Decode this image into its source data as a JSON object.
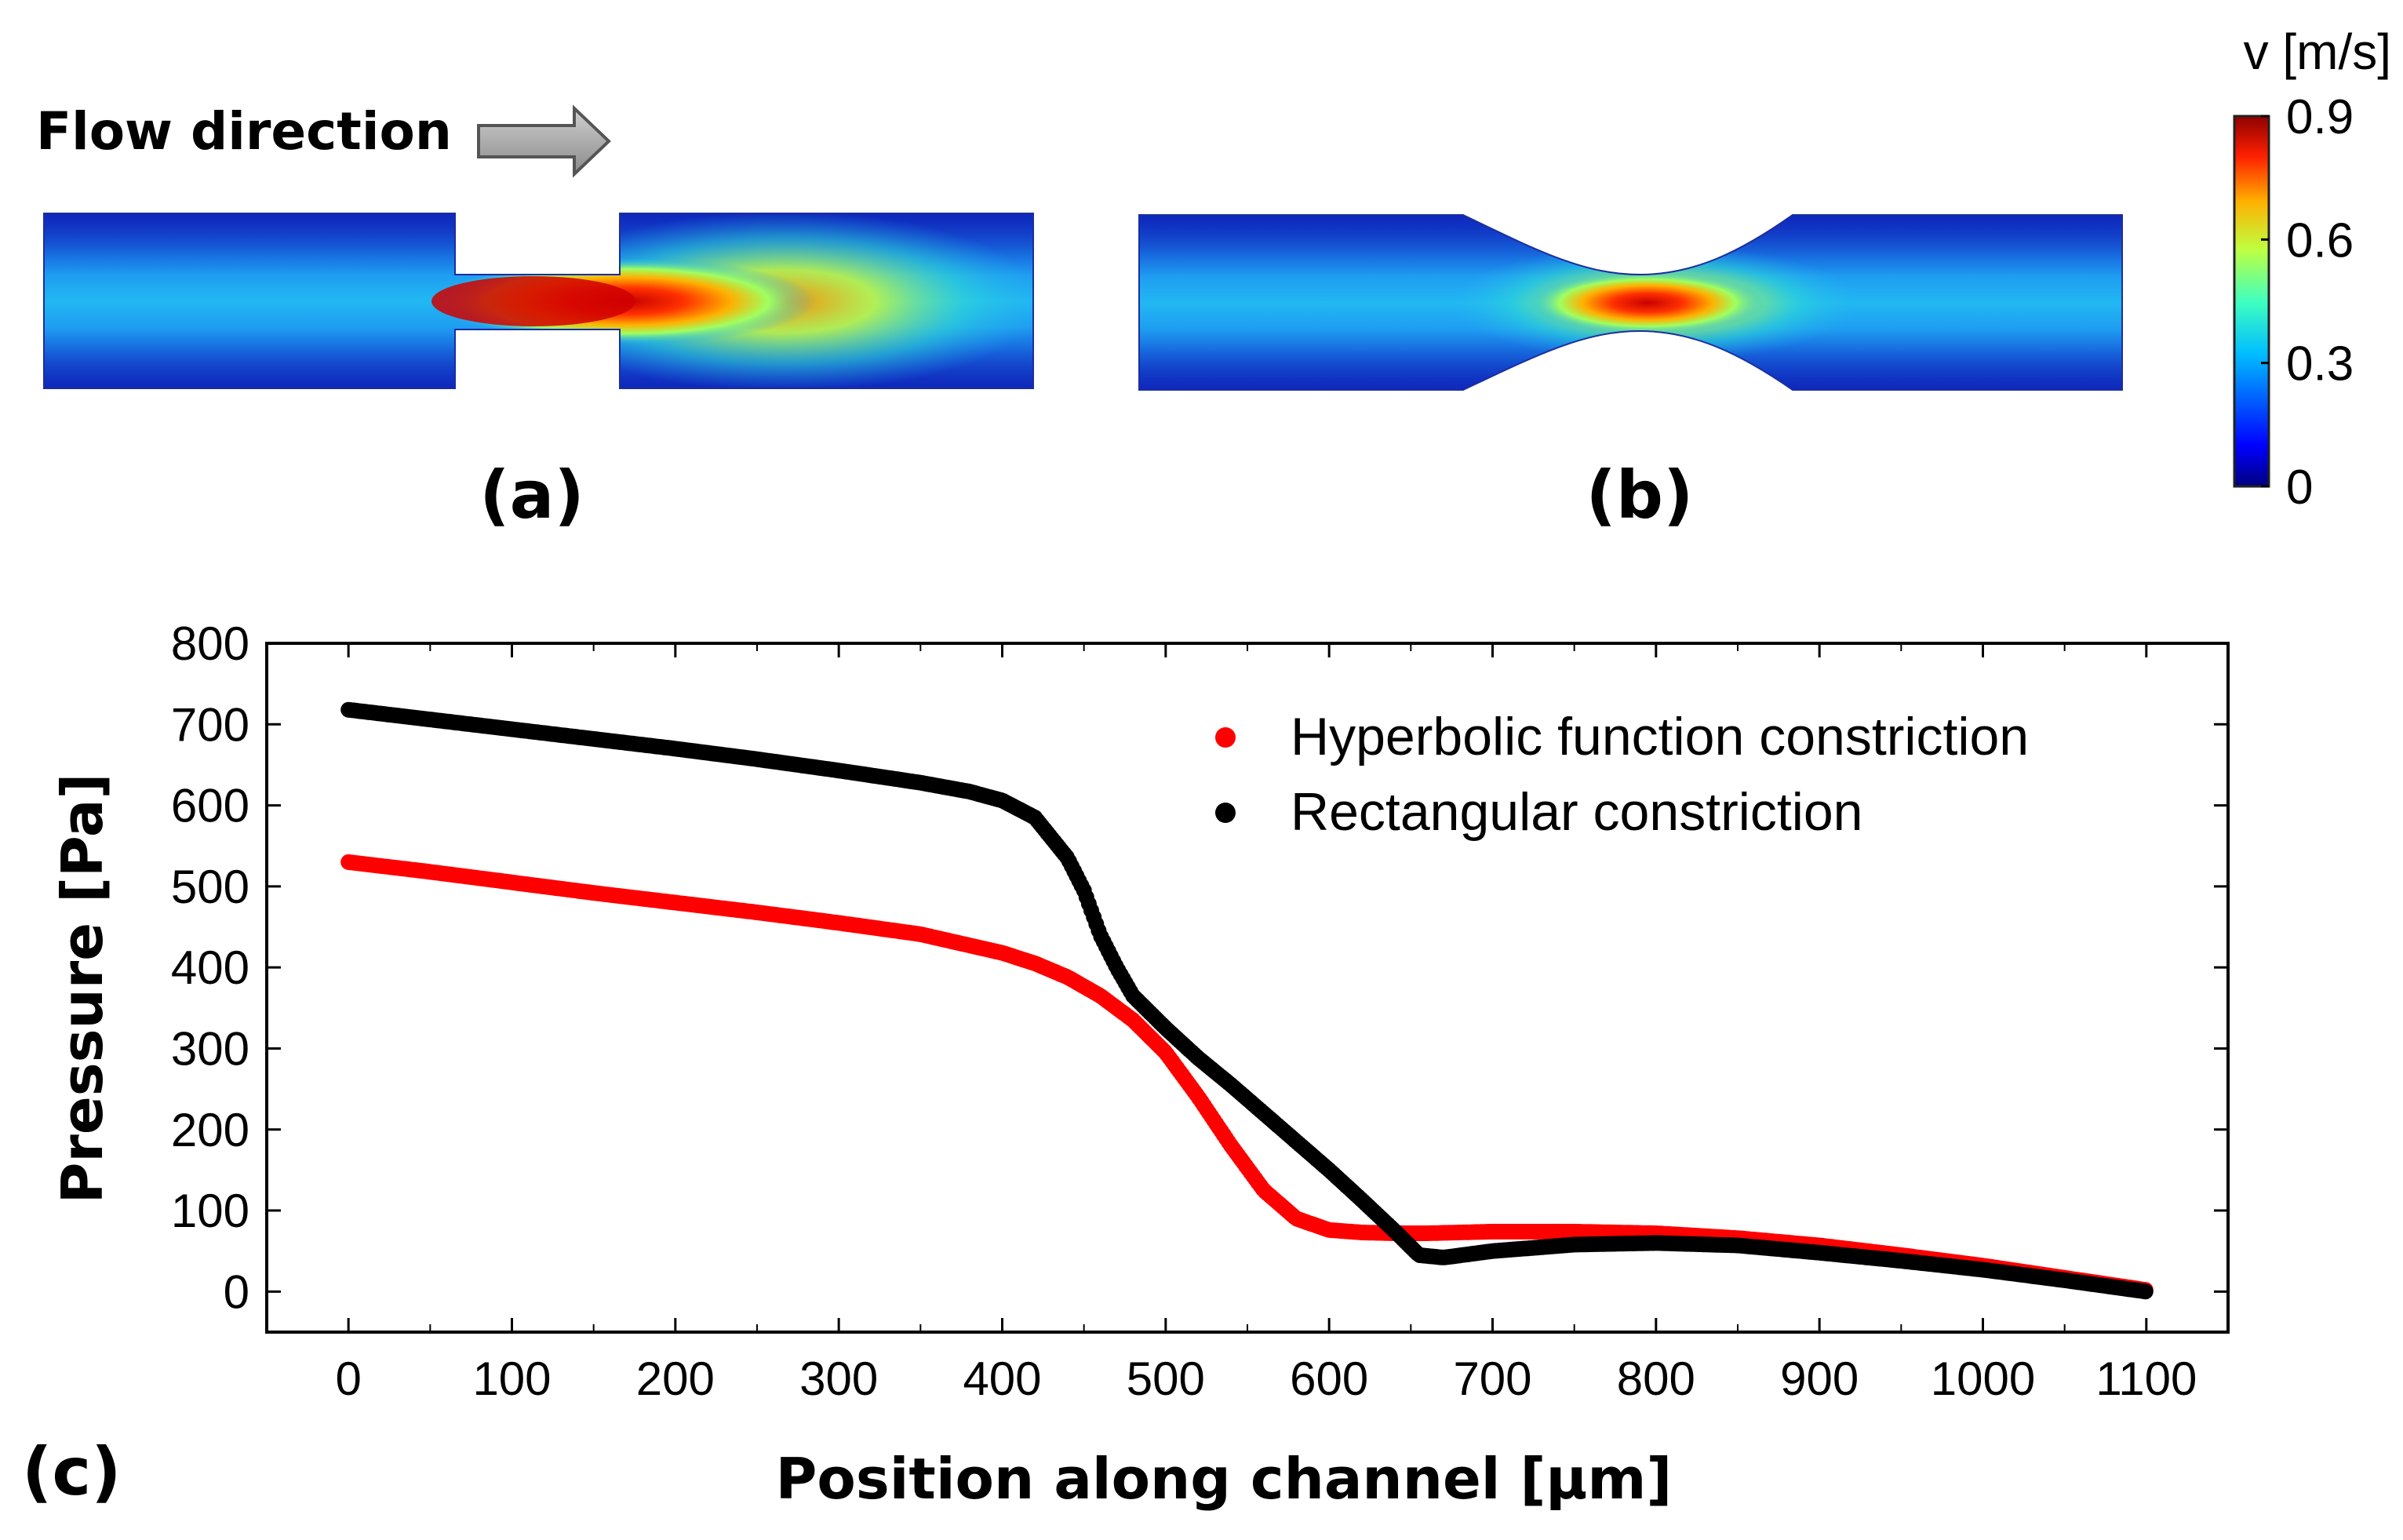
{
  "flow": {
    "label": "Flow direction",
    "panel_a_label": "(a)",
    "panel_b_label": "(b)"
  },
  "colorbar": {
    "title": "v [m/s]",
    "ticks": [
      "0.9",
      "0.6",
      "0.3",
      "0"
    ],
    "tick_values": [
      0.9,
      0.6,
      0.3,
      0
    ],
    "min": 0,
    "max": 0.9,
    "colors": [
      "#00007f",
      "#0000ff",
      "#007fff",
      "#00ffff",
      "#7fff7f",
      "#ffff00",
      "#ff7f00",
      "#ff0000",
      "#7f0000"
    ]
  },
  "panel_c_label": "(c)",
  "chart_data": {
    "type": "scatter",
    "title": "",
    "xlabel": "Position along channel [μm]",
    "ylabel": "Pressure [Pa]",
    "xlim": [
      -50,
      1150
    ],
    "ylim": [
      -50,
      800
    ],
    "xticks": [
      0,
      100,
      200,
      300,
      400,
      500,
      600,
      700,
      800,
      900,
      1000,
      1100
    ],
    "yticks": [
      0,
      100,
      200,
      300,
      400,
      500,
      600,
      700,
      800
    ],
    "legend_position": "top-right",
    "series": [
      {
        "name": "Hyperbolic function constriction",
        "color": "#ff0000",
        "x": [
          0,
          50,
          100,
          150,
          200,
          250,
          300,
          350,
          400,
          420,
          440,
          460,
          480,
          500,
          520,
          540,
          560,
          580,
          600,
          620,
          640,
          660,
          680,
          700,
          750,
          800,
          850,
          900,
          950,
          1000,
          1050,
          1100
        ],
        "y": [
          530,
          518,
          505,
          492,
          480,
          468,
          455,
          441,
          418,
          405,
          388,
          365,
          335,
          295,
          240,
          180,
          125,
          90,
          76,
          73,
          72,
          72,
          73,
          74,
          74,
          72,
          66,
          57,
          45,
          32,
          17,
          2
        ]
      },
      {
        "name": "Rectangular constriction",
        "color": "#000000",
        "x": [
          0,
          50,
          100,
          150,
          200,
          250,
          300,
          350,
          380,
          400,
          420,
          440,
          450,
          460,
          470,
          480,
          500,
          520,
          540,
          560,
          580,
          600,
          620,
          640,
          655,
          670,
          700,
          750,
          800,
          850,
          900,
          950,
          1000,
          1050,
          1100
        ],
        "y": [
          718,
          706,
          694,
          682,
          670,
          657,
          643,
          628,
          617,
          606,
          585,
          535,
          495,
          440,
          400,
          365,
          325,
          288,
          255,
          220,
          185,
          150,
          113,
          75,
          45,
          42,
          50,
          58,
          60,
          57,
          48,
          38,
          27,
          14,
          0
        ]
      }
    ]
  }
}
